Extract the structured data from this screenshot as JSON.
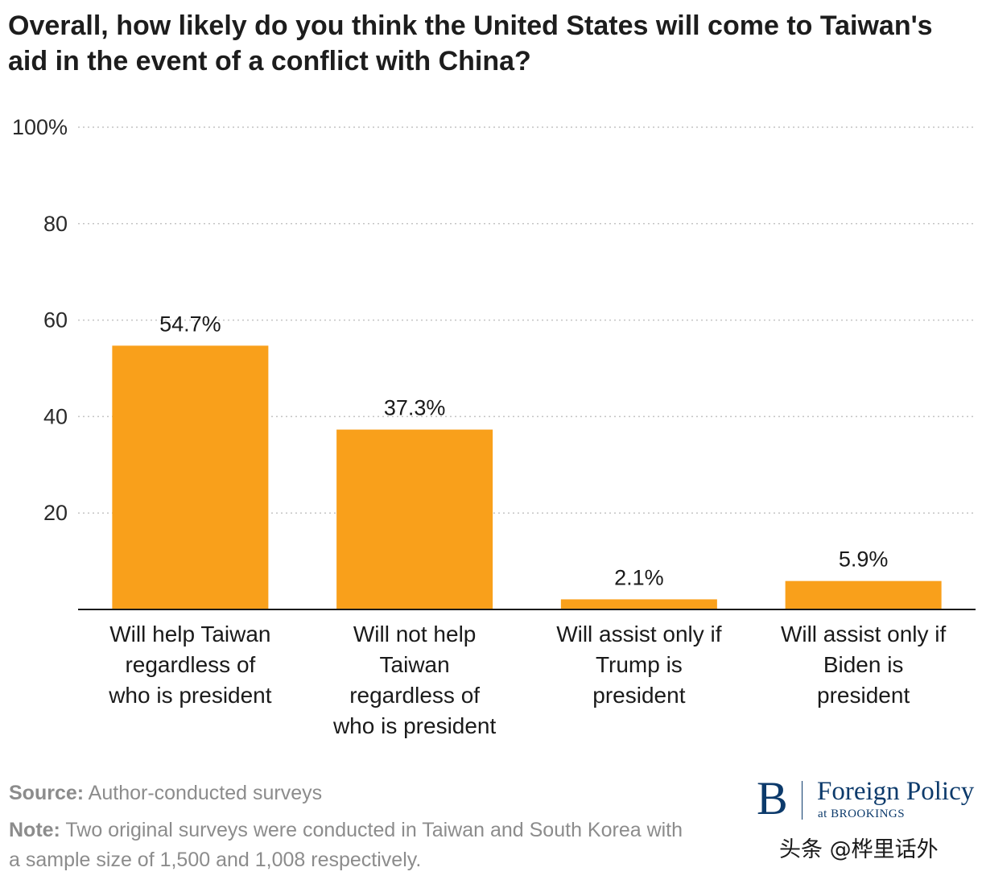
{
  "title": "Overall, how likely do you think the United States will come to Taiwan's aid in the event of a conflict with China?",
  "chart_data": {
    "type": "bar",
    "title": "Overall, how likely do you think the United States will come to Taiwan's aid in the event of a conflict with China?",
    "categories": [
      [
        "Will help Taiwan",
        "regardless of",
        "who is president"
      ],
      [
        "Will not help",
        "Taiwan",
        "regardless of",
        "who is president"
      ],
      [
        "Will assist only if",
        "Trump is",
        "president"
      ],
      [
        "Will assist only if",
        "Biden is",
        "president"
      ]
    ],
    "values": [
      54.7,
      37.3,
      2.1,
      5.9
    ],
    "value_labels": [
      "54.7%",
      "37.3%",
      "2.1%",
      "5.9%"
    ],
    "ylim": [
      0,
      100
    ],
    "yticks": [
      20,
      40,
      60,
      80,
      100
    ],
    "ytick_labels": [
      "20",
      "40",
      "60",
      "80",
      "100%"
    ],
    "bar_color": "#f9a01b",
    "grid": "dotted horizontal",
    "xlabel": "",
    "ylabel": ""
  },
  "footer": {
    "source_label": "Source:",
    "source_text": "Author-conducted surveys",
    "note_label": "Note:",
    "note_text": "Two original surveys were conducted in Taiwan and South Korea with a sample size of 1,500 and 1,008 respectively."
  },
  "logo": {
    "mark": "B",
    "name": "Foreign Policy",
    "sub": "at BROOKINGS",
    "color": "#0c3a6b"
  },
  "watermark": "头条 @桦里话外"
}
